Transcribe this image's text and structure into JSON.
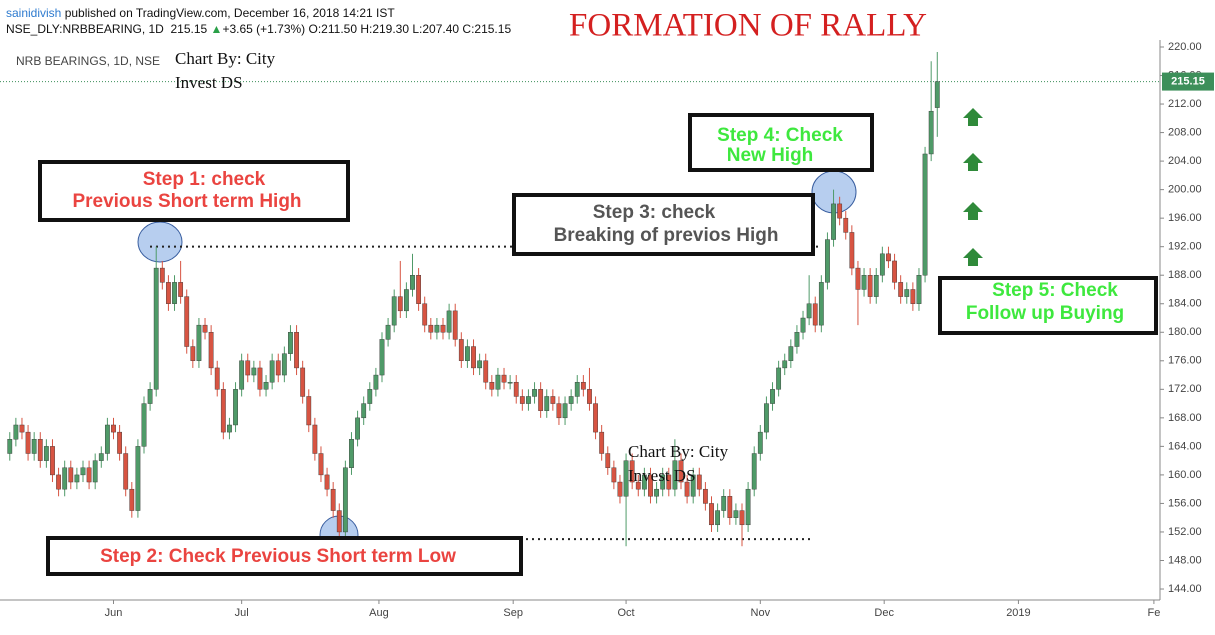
{
  "header": {
    "author": "sainidivish",
    "published": "published on TradingView.com, December 16, 2018 14:21 IST",
    "symbol": "NSE_DLY:NRBBEARING, 1D",
    "quote": "215.15",
    "change_arrow": "▲",
    "change": "+3.65 (+1.73%)",
    "ohlc": "O:211.50 H:219.30 L:207.40 C:215.15"
  },
  "chart_data": {
    "type": "candlestick",
    "title": "FORMATION OF RALLY",
    "legend": "NRB BEARINGS, 1D, NSE",
    "watermarks": [
      [
        "Chart By: City",
        "Invest DS"
      ],
      [
        "Chart By: City",
        "Invest DS"
      ]
    ],
    "up_color": "#4f9a68",
    "down_color": "#d75442",
    "open": [
      163,
      165,
      167,
      166,
      163,
      165,
      162,
      164,
      160,
      158,
      161,
      159,
      160,
      161,
      159,
      162,
      163,
      167,
      166,
      163,
      158,
      155,
      164,
      170,
      172,
      189,
      187,
      184,
      187,
      185,
      178,
      176,
      181,
      180,
      175,
      172,
      166,
      167,
      172,
      176,
      174,
      175,
      172,
      173,
      176,
      174,
      177,
      180,
      175,
      171,
      167,
      163,
      160,
      158,
      155,
      152,
      161,
      165,
      168,
      170,
      172,
      174,
      179,
      181,
      185,
      183,
      186,
      188,
      184,
      181,
      180,
      181,
      180,
      183,
      179,
      176,
      178,
      175,
      176,
      173,
      172,
      174,
      173,
      173,
      171,
      170,
      171,
      172,
      169,
      171,
      170,
      168,
      170,
      171,
      173,
      172,
      170,
      166,
      163,
      161,
      159,
      157,
      162,
      159,
      158,
      160,
      157,
      158,
      160,
      158,
      162,
      159,
      157,
      160,
      158,
      156,
      153,
      155,
      157,
      154,
      155,
      153,
      158,
      163,
      166,
      170,
      172,
      175,
      176,
      178,
      180,
      182,
      184,
      181,
      187,
      193,
      198,
      196,
      194,
      189,
      186,
      188,
      185,
      188,
      191,
      190,
      187,
      185,
      186,
      184,
      188,
      205,
      211.5
    ],
    "high": [
      166,
      168,
      168,
      167,
      166,
      166,
      165,
      165,
      161,
      162,
      162,
      161,
      162,
      162,
      163,
      164,
      168,
      168,
      167,
      164,
      159,
      165,
      171,
      173,
      192,
      190,
      188,
      188,
      190,
      186,
      179,
      182,
      182,
      181,
      176,
      173,
      168,
      173,
      177,
      177,
      176,
      176,
      174,
      177,
      177,
      178,
      181,
      181,
      176,
      172,
      168,
      164,
      161,
      159,
      156,
      162,
      166,
      169,
      171,
      173,
      175,
      180,
      182,
      186,
      190,
      187,
      191,
      189,
      185,
      182,
      182,
      182,
      184,
      184,
      180,
      179,
      179,
      177,
      177,
      174,
      175,
      175,
      174,
      174,
      172,
      172,
      173,
      173,
      172,
      172,
      171,
      171,
      172,
      174,
      174,
      175,
      171,
      167,
      164,
      162,
      160,
      163,
      163,
      160,
      161,
      161,
      159,
      161,
      161,
      165,
      163,
      160,
      161,
      161,
      159,
      157,
      156,
      158,
      158,
      156,
      156,
      159,
      164,
      167,
      171,
      173,
      176,
      177,
      179,
      181,
      183,
      188,
      185,
      188,
      194,
      200,
      199,
      197,
      195,
      190,
      189,
      189,
      189,
      192,
      192,
      191,
      188,
      187,
      187,
      189,
      206,
      218,
      219.3
    ],
    "low": [
      162,
      164,
      165,
      162,
      162,
      161,
      161,
      159,
      157,
      157,
      158,
      158,
      159,
      158,
      158,
      161,
      162,
      165,
      162,
      157,
      154,
      154,
      163,
      169,
      171,
      186,
      183,
      183,
      184,
      177,
      175,
      175,
      179,
      174,
      171,
      165,
      165,
      166,
      171,
      173,
      173,
      171,
      171,
      172,
      173,
      173,
      176,
      174,
      170,
      166,
      162,
      159,
      157,
      154,
      151,
      151,
      160,
      164,
      167,
      169,
      171,
      173,
      178,
      180,
      182,
      182,
      185,
      183,
      180,
      179,
      179,
      179,
      179,
      178,
      175,
      175,
      174,
      174,
      172,
      171,
      171,
      172,
      172,
      170,
      169,
      169,
      170,
      168,
      168,
      169,
      167,
      167,
      169,
      170,
      171,
      169,
      165,
      162,
      160,
      158,
      156,
      150,
      158,
      157,
      157,
      156,
      156,
      157,
      157,
      157,
      158,
      156,
      156,
      157,
      155,
      152,
      152,
      154,
      153,
      153,
      150,
      152,
      157,
      162,
      165,
      169,
      171,
      174,
      175,
      177,
      179,
      181,
      180,
      180,
      186,
      192,
      195,
      193,
      188,
      181,
      185,
      184,
      184,
      187,
      189,
      186,
      184,
      184,
      183,
      183,
      187,
      204,
      207.4
    ],
    "close": [
      165,
      167,
      166,
      163,
      165,
      162,
      164,
      160,
      158,
      161,
      159,
      160,
      161,
      159,
      162,
      163,
      167,
      166,
      163,
      158,
      155,
      164,
      170,
      172,
      189,
      187,
      184,
      187,
      185,
      178,
      176,
      181,
      180,
      175,
      172,
      166,
      167,
      172,
      176,
      174,
      175,
      172,
      173,
      176,
      174,
      177,
      180,
      175,
      171,
      167,
      163,
      160,
      158,
      155,
      152,
      161,
      165,
      168,
      170,
      172,
      174,
      179,
      181,
      185,
      183,
      186,
      188,
      184,
      181,
      180,
      181,
      180,
      183,
      179,
      176,
      178,
      175,
      176,
      173,
      172,
      174,
      173,
      173,
      171,
      170,
      171,
      172,
      169,
      171,
      170,
      168,
      170,
      171,
      173,
      172,
      170,
      166,
      163,
      161,
      159,
      157,
      162,
      159,
      158,
      160,
      157,
      158,
      160,
      158,
      162,
      159,
      157,
      160,
      158,
      156,
      153,
      155,
      157,
      154,
      155,
      153,
      158,
      163,
      166,
      170,
      172,
      175,
      176,
      178,
      180,
      182,
      184,
      181,
      187,
      193,
      198,
      196,
      194,
      189,
      186,
      188,
      185,
      188,
      191,
      190,
      187,
      185,
      186,
      184,
      188,
      205,
      211,
      215.15
    ],
    "xlim": [
      -1.6,
      188.5
    ],
    "xticks": [
      {
        "value": 17,
        "label": "Jun"
      },
      {
        "value": 38,
        "label": "Jul"
      },
      {
        "value": 60.5,
        "label": "Aug"
      },
      {
        "value": 82.5,
        "label": "Sep"
      },
      {
        "value": 101,
        "label": "Oct"
      },
      {
        "value": 123,
        "label": "Nov"
      },
      {
        "value": 143.3,
        "label": "Dec"
      },
      {
        "value": 165.3,
        "label": "2019"
      },
      {
        "value": 187.5,
        "label": "Fe"
      }
    ],
    "ylim": [
      142.46,
      220.98
    ],
    "yticks": [
      {
        "value": 144,
        "label": "144.00"
      },
      {
        "value": 148,
        "label": "148.00"
      },
      {
        "value": 152,
        "label": "152.00"
      },
      {
        "value": 156,
        "label": "156.00"
      },
      {
        "value": 160,
        "label": "160.00"
      },
      {
        "value": 164,
        "label": "164.00"
      },
      {
        "value": 168,
        "label": "168.00"
      },
      {
        "value": 172,
        "label": "172.00"
      },
      {
        "value": 176,
        "label": "176.00"
      },
      {
        "value": 180,
        "label": "180.00"
      },
      {
        "value": 184,
        "label": "184.00"
      },
      {
        "value": 188,
        "label": "188.00"
      },
      {
        "value": 192,
        "label": "192.00"
      },
      {
        "value": 196,
        "label": "196.00"
      },
      {
        "value": 200,
        "label": "200.00"
      },
      {
        "value": 204,
        "label": "204.00"
      },
      {
        "value": 208,
        "label": "208.00"
      },
      {
        "value": 212,
        "label": "212.00"
      },
      {
        "value": 216,
        "label": "216.00"
      },
      {
        "value": 220,
        "label": "220.00"
      }
    ],
    "reference_lines": [
      192,
      151
    ],
    "annotations": [
      {
        "lines": [
          "Step 1: check",
          "Previous Short term High"
        ],
        "color": "#ea4440"
      },
      {
        "lines": [
          "Step 2: Check  Previous Short term Low"
        ],
        "color": "#ea4440"
      },
      {
        "lines": [
          "Step 3: check",
          "Breaking of previos High"
        ],
        "color": "#555555"
      },
      {
        "lines": [
          "Step 4: Check",
          "New High"
        ],
        "color": "#3ee83e"
      },
      {
        "lines": [
          "Step 5: Check",
          "Follow up Buying"
        ],
        "color": "#3ee83e"
      }
    ]
  }
}
